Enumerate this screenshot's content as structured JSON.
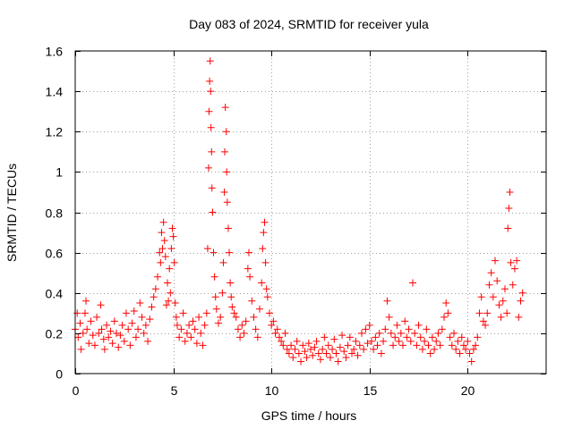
{
  "chart_data": {
    "type": "scatter",
    "title": "Day 083 of 2024, SRMTID for receiver yula",
    "xlabel": "GPS time / hours",
    "ylabel": "SRMTID / TECUs",
    "xlim": [
      0,
      24
    ],
    "ylim": [
      0,
      1.6
    ],
    "xticks": [
      0,
      5,
      10,
      15,
      20
    ],
    "xtick_labels": [
      "0",
      "5",
      "10",
      "15",
      "20"
    ],
    "yticks": [
      0,
      0.2,
      0.4,
      0.6,
      0.8,
      1.0,
      1.2,
      1.4,
      1.6
    ],
    "ytick_labels": [
      "0",
      "0.2",
      "0.4",
      "0.6",
      "0.8",
      "1",
      "1.2",
      "1.4",
      "1.6"
    ],
    "grid": true,
    "marker": "+",
    "color": "#ff0000",
    "series": [
      {
        "name": "SRMTID",
        "points": [
          [
            0.0,
            0.22
          ],
          [
            0.1,
            0.3
          ],
          [
            0.15,
            0.18
          ],
          [
            0.25,
            0.25
          ],
          [
            0.3,
            0.12
          ],
          [
            0.4,
            0.2
          ],
          [
            0.5,
            0.3
          ],
          [
            0.55,
            0.36
          ],
          [
            0.6,
            0.22
          ],
          [
            0.7,
            0.15
          ],
          [
            0.8,
            0.26
          ],
          [
            0.9,
            0.19
          ],
          [
            1.0,
            0.14
          ],
          [
            1.1,
            0.28
          ],
          [
            1.2,
            0.2
          ],
          [
            1.3,
            0.34
          ],
          [
            1.35,
            0.22
          ],
          [
            1.45,
            0.17
          ],
          [
            1.5,
            0.12
          ],
          [
            1.6,
            0.24
          ],
          [
            1.7,
            0.18
          ],
          [
            1.8,
            0.21
          ],
          [
            1.9,
            0.15
          ],
          [
            2.0,
            0.26
          ],
          [
            2.1,
            0.2
          ],
          [
            2.2,
            0.13
          ],
          [
            2.3,
            0.19
          ],
          [
            2.4,
            0.24
          ],
          [
            2.5,
            0.16
          ],
          [
            2.6,
            0.3
          ],
          [
            2.7,
            0.22
          ],
          [
            2.8,
            0.14
          ],
          [
            2.9,
            0.25
          ],
          [
            3.0,
            0.31
          ],
          [
            3.1,
            0.18
          ],
          [
            3.2,
            0.22
          ],
          [
            3.3,
            0.35
          ],
          [
            3.4,
            0.28
          ],
          [
            3.5,
            0.2
          ],
          [
            3.6,
            0.24
          ],
          [
            3.7,
            0.16
          ],
          [
            3.8,
            0.27
          ],
          [
            3.9,
            0.33
          ],
          [
            4.0,
            0.38
          ],
          [
            4.1,
            0.42
          ],
          [
            4.2,
            0.48
          ],
          [
            4.3,
            0.6
          ],
          [
            4.35,
            0.55
          ],
          [
            4.4,
            0.7
          ],
          [
            4.45,
            0.62
          ],
          [
            4.5,
            0.75
          ],
          [
            4.55,
            0.66
          ],
          [
            4.6,
            0.58
          ],
          [
            4.65,
            0.34
          ],
          [
            4.7,
            0.45
          ],
          [
            4.75,
            0.36
          ],
          [
            4.8,
            0.52
          ],
          [
            4.85,
            0.4
          ],
          [
            4.9,
            0.62
          ],
          [
            4.95,
            0.72
          ],
          [
            5.0,
            0.68
          ],
          [
            5.05,
            0.55
          ],
          [
            5.1,
            0.35
          ],
          [
            5.15,
            0.28
          ],
          [
            5.2,
            0.24
          ],
          [
            5.3,
            0.18
          ],
          [
            5.4,
            0.22
          ],
          [
            5.5,
            0.3
          ],
          [
            5.6,
            0.16
          ],
          [
            5.7,
            0.2
          ],
          [
            5.8,
            0.24
          ],
          [
            5.9,
            0.18
          ],
          [
            6.0,
            0.26
          ],
          [
            6.1,
            0.22
          ],
          [
            6.2,
            0.15
          ],
          [
            6.3,
            0.28
          ],
          [
            6.4,
            0.2
          ],
          [
            6.5,
            0.14
          ],
          [
            6.6,
            0.24
          ],
          [
            6.7,
            0.3
          ],
          [
            6.75,
            0.62
          ],
          [
            6.8,
            1.02
          ],
          [
            6.82,
            1.3
          ],
          [
            6.85,
            1.45
          ],
          [
            6.88,
            1.55
          ],
          [
            6.9,
            1.4
          ],
          [
            6.92,
            1.22
          ],
          [
            6.95,
            1.1
          ],
          [
            6.97,
            0.92
          ],
          [
            7.0,
            0.8
          ],
          [
            7.05,
            0.6
          ],
          [
            7.1,
            0.48
          ],
          [
            7.15,
            0.38
          ],
          [
            7.2,
            0.32
          ],
          [
            7.3,
            0.25
          ],
          [
            7.4,
            0.28
          ],
          [
            7.5,
            0.4
          ],
          [
            7.55,
            0.55
          ],
          [
            7.6,
            0.9
          ],
          [
            7.62,
            1.1
          ],
          [
            7.65,
            1.32
          ],
          [
            7.7,
            1.2
          ],
          [
            7.72,
            1.0
          ],
          [
            7.75,
            0.85
          ],
          [
            7.8,
            0.72
          ],
          [
            7.85,
            0.6
          ],
          [
            7.9,
            0.45
          ],
          [
            7.95,
            0.38
          ],
          [
            8.0,
            0.33
          ],
          [
            8.1,
            0.3
          ],
          [
            8.2,
            0.28
          ],
          [
            8.3,
            0.22
          ],
          [
            8.4,
            0.18
          ],
          [
            8.5,
            0.24
          ],
          [
            8.6,
            0.2
          ],
          [
            8.7,
            0.26
          ],
          [
            8.8,
            0.52
          ],
          [
            8.85,
            0.6
          ],
          [
            8.9,
            0.48
          ],
          [
            9.0,
            0.36
          ],
          [
            9.1,
            0.28
          ],
          [
            9.2,
            0.22
          ],
          [
            9.3,
            0.18
          ],
          [
            9.4,
            0.32
          ],
          [
            9.5,
            0.45
          ],
          [
            9.55,
            0.62
          ],
          [
            9.6,
            0.7
          ],
          [
            9.65,
            0.75
          ],
          [
            9.7,
            0.55
          ],
          [
            9.75,
            0.42
          ],
          [
            9.8,
            0.38
          ],
          [
            9.9,
            0.3
          ],
          [
            10.0,
            0.24
          ],
          [
            10.1,
            0.26
          ],
          [
            10.2,
            0.2
          ],
          [
            10.3,
            0.22
          ],
          [
            10.4,
            0.18
          ],
          [
            10.5,
            0.16
          ],
          [
            10.6,
            0.14
          ],
          [
            10.7,
            0.2
          ],
          [
            10.8,
            0.12
          ],
          [
            10.9,
            0.1
          ],
          [
            11.0,
            0.14
          ],
          [
            11.1,
            0.08
          ],
          [
            11.2,
            0.12
          ],
          [
            11.3,
            0.16
          ],
          [
            11.4,
            0.1
          ],
          [
            11.5,
            0.06
          ],
          [
            11.6,
            0.14
          ],
          [
            11.7,
            0.11
          ],
          [
            11.8,
            0.08
          ],
          [
            11.9,
            0.15
          ],
          [
            12.0,
            0.12
          ],
          [
            12.1,
            0.09
          ],
          [
            12.2,
            0.13
          ],
          [
            12.3,
            0.16
          ],
          [
            12.4,
            0.1
          ],
          [
            12.5,
            0.07
          ],
          [
            12.6,
            0.12
          ],
          [
            12.7,
            0.18
          ],
          [
            12.8,
            0.1
          ],
          [
            12.9,
            0.14
          ],
          [
            13.0,
            0.08
          ],
          [
            13.1,
            0.12
          ],
          [
            13.2,
            0.17
          ],
          [
            13.3,
            0.1
          ],
          [
            13.4,
            0.06
          ],
          [
            13.5,
            0.13
          ],
          [
            13.6,
            0.19
          ],
          [
            13.7,
            0.11
          ],
          [
            13.8,
            0.08
          ],
          [
            13.9,
            0.14
          ],
          [
            14.0,
            0.18
          ],
          [
            14.1,
            0.1
          ],
          [
            14.2,
            0.12
          ],
          [
            14.3,
            0.16
          ],
          [
            14.4,
            0.09
          ],
          [
            14.5,
            0.14
          ],
          [
            14.6,
            0.2
          ],
          [
            14.7,
            0.12
          ],
          [
            14.8,
            0.22
          ],
          [
            14.9,
            0.15
          ],
          [
            15.0,
            0.24
          ],
          [
            15.1,
            0.16
          ],
          [
            15.2,
            0.12
          ],
          [
            15.3,
            0.18
          ],
          [
            15.4,
            0.14
          ],
          [
            15.5,
            0.2
          ],
          [
            15.6,
            0.1
          ],
          [
            15.7,
            0.16
          ],
          [
            15.8,
            0.22
          ],
          [
            15.9,
            0.36
          ],
          [
            16.0,
            0.28
          ],
          [
            16.1,
            0.2
          ],
          [
            16.2,
            0.14
          ],
          [
            16.3,
            0.18
          ],
          [
            16.4,
            0.24
          ],
          [
            16.5,
            0.16
          ],
          [
            16.6,
            0.2
          ],
          [
            16.7,
            0.14
          ],
          [
            16.8,
            0.26
          ],
          [
            16.9,
            0.18
          ],
          [
            17.0,
            0.22
          ],
          [
            17.1,
            0.16
          ],
          [
            17.2,
            0.45
          ],
          [
            17.3,
            0.2
          ],
          [
            17.4,
            0.14
          ],
          [
            17.5,
            0.24
          ],
          [
            17.6,
            0.18
          ],
          [
            17.7,
            0.12
          ],
          [
            17.8,
            0.16
          ],
          [
            17.9,
            0.22
          ],
          [
            18.0,
            0.14
          ],
          [
            18.1,
            0.1
          ],
          [
            18.2,
            0.18
          ],
          [
            18.3,
            0.12
          ],
          [
            18.4,
            0.16
          ],
          [
            18.5,
            0.2
          ],
          [
            18.6,
            0.14
          ],
          [
            18.7,
            0.22
          ],
          [
            18.8,
            0.28
          ],
          [
            18.9,
            0.35
          ],
          [
            19.0,
            0.3
          ],
          [
            19.1,
            0.18
          ],
          [
            19.2,
            0.14
          ],
          [
            19.3,
            0.2
          ],
          [
            19.4,
            0.12
          ],
          [
            19.5,
            0.16
          ],
          [
            19.6,
            0.1
          ],
          [
            19.7,
            0.18
          ],
          [
            19.8,
            0.14
          ],
          [
            19.9,
            0.12
          ],
          [
            20.0,
            0.16
          ],
          [
            20.1,
            0.1
          ],
          [
            20.2,
            0.06
          ],
          [
            20.3,
            0.12
          ],
          [
            20.4,
            0.14
          ],
          [
            20.5,
            0.18
          ],
          [
            20.6,
            0.3
          ],
          [
            20.7,
            0.38
          ],
          [
            20.8,
            0.26
          ],
          [
            20.9,
            0.24
          ],
          [
            21.0,
            0.3
          ],
          [
            21.1,
            0.44
          ],
          [
            21.2,
            0.5
          ],
          [
            21.3,
            0.38
          ],
          [
            21.4,
            0.56
          ],
          [
            21.5,
            0.46
          ],
          [
            21.6,
            0.34
          ],
          [
            21.7,
            0.28
          ],
          [
            21.8,
            0.36
          ],
          [
            21.9,
            0.42
          ],
          [
            22.0,
            0.3
          ],
          [
            22.05,
            0.72
          ],
          [
            22.1,
            0.82
          ],
          [
            22.15,
            0.9
          ],
          [
            22.2,
            0.55
          ],
          [
            22.3,
            0.44
          ],
          [
            22.4,
            0.52
          ],
          [
            22.5,
            0.56
          ],
          [
            22.6,
            0.28
          ],
          [
            22.7,
            0.36
          ],
          [
            22.8,
            0.4
          ]
        ]
      }
    ]
  }
}
